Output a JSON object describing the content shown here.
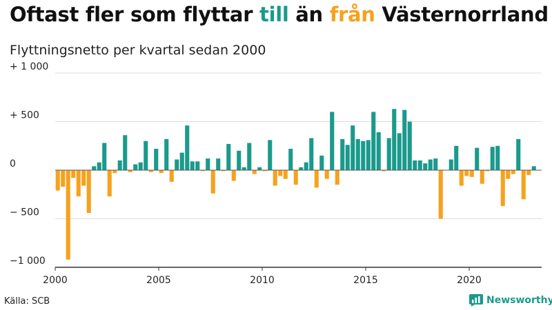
{
  "title": {
    "part1": "Oftast fler som flyttar ",
    "word_till": "till",
    "part2": " än ",
    "word_fran": "från",
    "part3": " Västernorrland"
  },
  "subtitle": "Flyttningsnetto per kvartal sedan 2000",
  "source": "Källa: SCB",
  "brand": {
    "name": "Newsworthy",
    "icon": "newsworthy-logo-icon"
  },
  "colors": {
    "positive": "#1a9a8c",
    "negative": "#f6a21e",
    "title_till": "#1a9a8c",
    "title_fran": "#f6a21e",
    "grid": "#dddddd",
    "axis": "#333333"
  },
  "chart_data": {
    "type": "bar",
    "title": "Oftast fler som flyttar till än från Västernorrland",
    "subtitle": "Flyttningsnetto per kvartal sedan 2000",
    "x_start_year": 2000,
    "periods_per_year": 4,
    "x_ticks": [
      2000,
      2005,
      2010,
      2015,
      2020
    ],
    "x_tick_labels": [
      "2000",
      "2005",
      "2010",
      "2015",
      "2020"
    ],
    "y_ticks": [
      1000,
      500,
      0,
      -500,
      -1000
    ],
    "y_tick_labels": [
      "+ 1 000",
      "+  500",
      "0",
      "− 500",
      "−1 000"
    ],
    "ylim": [
      -1000,
      1000
    ],
    "grid": true,
    "legend": "none",
    "values": [
      -210,
      -170,
      -920,
      -80,
      -270,
      -160,
      -440,
      40,
      80,
      280,
      -270,
      -30,
      100,
      360,
      -20,
      60,
      80,
      300,
      -20,
      220,
      -30,
      320,
      -120,
      110,
      180,
      460,
      90,
      90,
      -10,
      120,
      -240,
      120,
      -10,
      270,
      -110,
      200,
      30,
      280,
      -40,
      30,
      -10,
      310,
      -160,
      -60,
      -90,
      220,
      -150,
      30,
      80,
      330,
      -180,
      150,
      -90,
      600,
      -150,
      320,
      260,
      460,
      320,
      300,
      310,
      600,
      390,
      -10,
      330,
      630,
      380,
      620,
      500,
      100,
      100,
      70,
      110,
      120,
      -500,
      0,
      110,
      250,
      -160,
      -60,
      -70,
      230,
      -140,
      -10,
      240,
      250,
      -370,
      -90,
      -40,
      320,
      -300,
      -50,
      40
    ]
  }
}
